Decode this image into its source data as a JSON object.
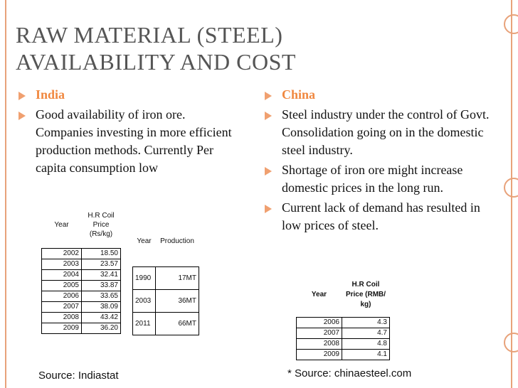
{
  "title_line1": "RAW MATERIAL (STEEL)",
  "title_line2": "AVAILABILITY AND COST",
  "india": {
    "heading": "India",
    "point": "Good availability of iron ore. Companies investing in more efficient production methods. Currently Per capita consumption low"
  },
  "china": {
    "heading": "China",
    "points": [
      "Steel industry under the control of Govt. Consolidation going on in the domestic  steel industry.",
      "Shortage of iron ore might increase domestic prices in the long run.",
      "Current lack of demand has resulted in low prices of steel."
    ]
  },
  "india_price_table": {
    "headers": [
      "Year",
      "H.R Coil Price (Rs/kg)"
    ],
    "rows": [
      [
        "2002",
        "18.50"
      ],
      [
        "2003",
        "23.57"
      ],
      [
        "2004",
        "32.41"
      ],
      [
        "2005",
        "33.87"
      ],
      [
        "2006",
        "33.65"
      ],
      [
        "2007",
        "38.09"
      ],
      [
        "2008",
        "43.42"
      ],
      [
        "2009",
        "36.20"
      ]
    ]
  },
  "india_production_table": {
    "headers": [
      "Year",
      "Production"
    ],
    "rows": [
      [
        "1990",
        "17MT"
      ],
      [
        "2003",
        "36MT"
      ],
      [
        "2011",
        "66MT"
      ]
    ]
  },
  "china_price_table": {
    "headers": [
      "Year",
      "H.R Coil Price (RMB/ kg)"
    ],
    "rows": [
      [
        "2006",
        "4.3"
      ],
      [
        "2007",
        "4.7"
      ],
      [
        "2008",
        "4.8"
      ],
      [
        "2009",
        "4.1"
      ]
    ]
  },
  "source_india": "Source: Indiastat",
  "source_china": "* Source: chinaesteel.com"
}
